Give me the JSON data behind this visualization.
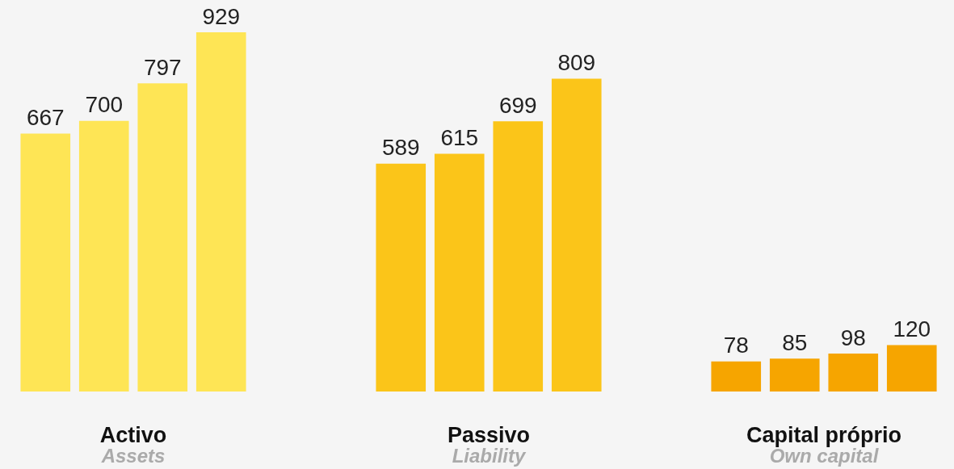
{
  "chart_data": [
    {
      "type": "bar",
      "xlabel": "Activo",
      "annotations": [
        "Assets"
      ],
      "categories": [
        null,
        null,
        null,
        null
      ],
      "values": [
        667,
        700,
        797,
        929
      ],
      "color": "#fee555",
      "data_labels": true
    },
    {
      "type": "bar",
      "xlabel": "Passivo",
      "annotations": [
        "Liability"
      ],
      "categories": [
        null,
        null,
        null,
        null
      ],
      "values": [
        589,
        615,
        699,
        809
      ],
      "color": "#fbc519",
      "data_labels": true
    },
    {
      "type": "bar",
      "xlabel": "Capital próprio",
      "annotations": [
        "Own capital"
      ],
      "categories": [
        null,
        null,
        null,
        null
      ],
      "values": [
        78,
        85,
        98,
        120
      ],
      "color": "#f6a500",
      "data_labels": true
    }
  ]
}
